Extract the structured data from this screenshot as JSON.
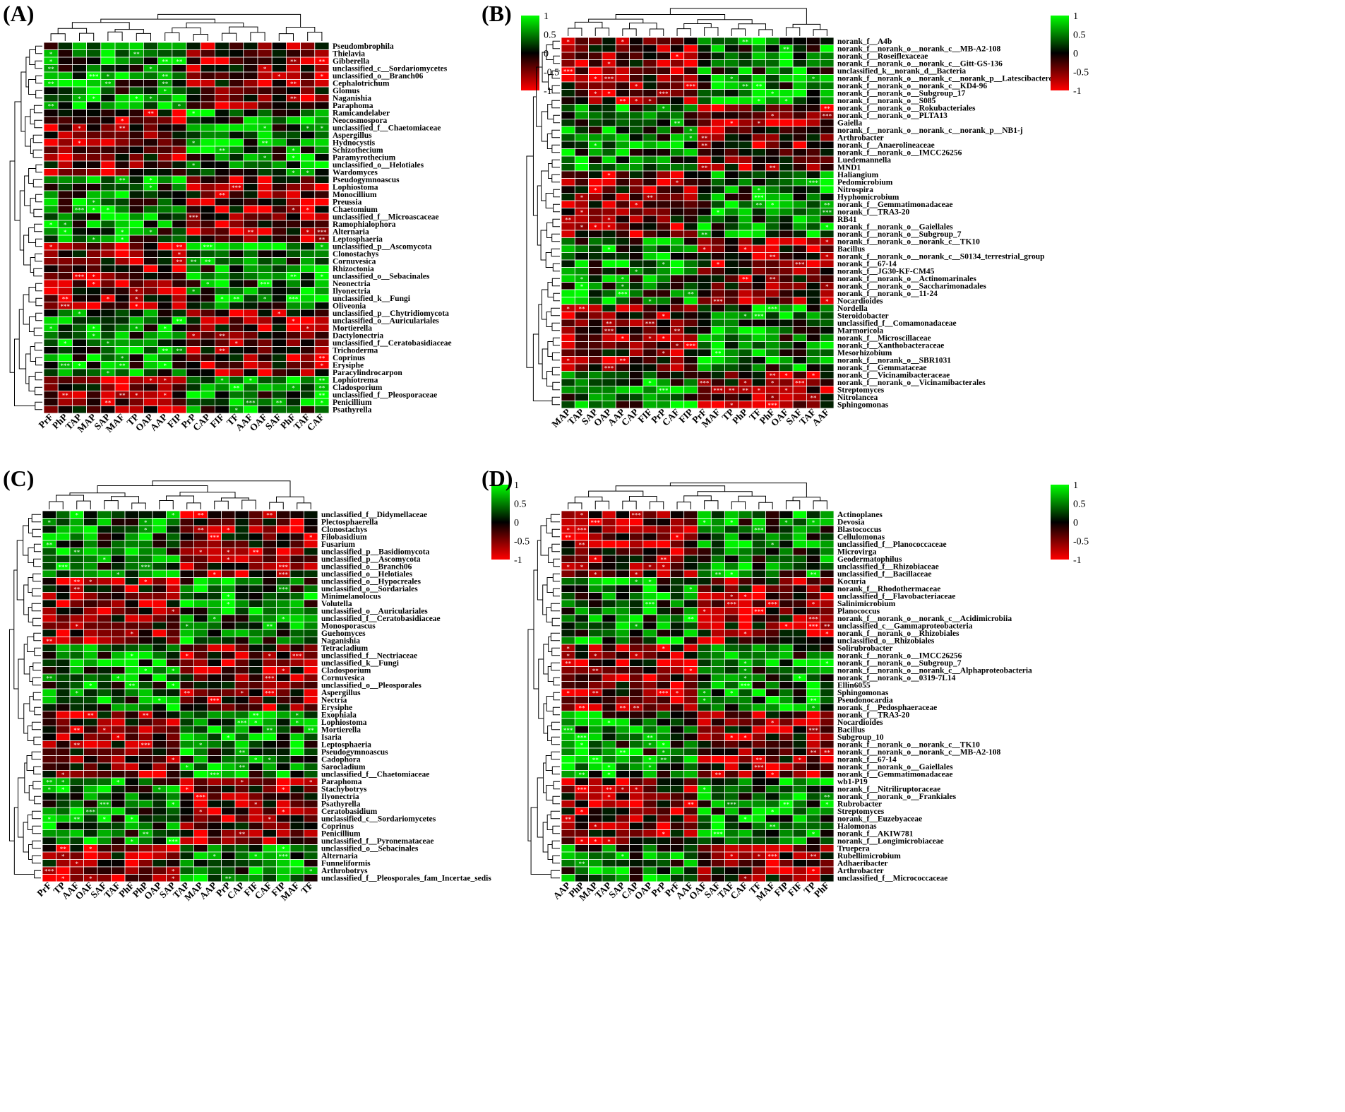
{
  "panels": [
    {
      "label": "(A)",
      "cols": [
        "PrF",
        "PhP",
        "TAP",
        "MAP",
        "SAP",
        "MAF",
        "TP",
        "OAP",
        "AAP",
        "FIP",
        "PrP",
        "CAP",
        "FIF",
        "TF",
        "AAF",
        "OAF",
        "SAF",
        "PhF",
        "TAF",
        "CAF"
      ],
      "rows": [
        "Pseudombrophila",
        "Thielavia",
        "Gibberella",
        "unclassified_c__Sordariomycetes",
        "unclassified_o__Branch06",
        "Cephalotrichum",
        "Glomus",
        "Naganishia",
        "Paraphoma",
        "Ramicandelaber",
        "Neocosmospora",
        "unclassified_f__Chaetomiaceae",
        "Aspergillus",
        "Hydnocystis",
        "Schizothecium",
        "Paramyrothecium",
        "unclassified_o__Helotiales",
        "Wardomyces",
        "Pseudogymnoascus",
        "Lophiostoma",
        "Monocillium",
        "Preussia",
        "Chaetomium",
        "unclassified_f__Microascaceae",
        "Ramophialophora",
        "Alternaria",
        "Leptosphaeria",
        "unclassified_p__Ascomycota",
        "Clonostachys",
        "Cornuvesica",
        "Rhizoctonia",
        "unclassified_o__Sebacinales",
        "Neonectria",
        "Ilyonectria",
        "unclassified_k__Fungi",
        "Oliveonia",
        "unclassified_p__Chytridiomycota",
        "unclassified_o__Auriculariales",
        "Mortierella",
        "Dactylonectria",
        "unclassified_f__Ceratobasidiaceae",
        "Trichoderma",
        "Coprinus",
        "Erysiphe",
        "Paracylindrocarpon",
        "Lophiotrema",
        "Cladosporium",
        "unclassified_f__Pleosporaceae",
        "Penicillium",
        "Psathyrella"
      ]
    },
    {
      "label": "(B)",
      "cols": [
        "MAP",
        "TAP",
        "SAP",
        "OAP",
        "AAP",
        "CAP",
        "FIF",
        "PrP",
        "CAF",
        "FIP",
        "PrF",
        "MAF",
        "TP",
        "PhP",
        "TF",
        "PhF",
        "OAF",
        "SAF",
        "TAF",
        "AAF"
      ],
      "rows": [
        "norank_f__A4b",
        "norank_f__norank_o__norank_c__MB-A2-108",
        "norank_f__Roseiflexaceae",
        "norank_f__norank_o__norank_c__Gitt-GS-136",
        "unclassified_k__norank_d__Bacteria",
        "norank_f__norank_o__norank_c__norank_p__Latescibacterota",
        "norank_f__norank_o__norank_c__KD4-96",
        "norank_f__norank_o__Subgroup_17",
        "norank_f__norank_o__S085",
        "norank_f__norank_o__Rokubacteriales",
        "norank_f__norank_o__PLTA13",
        "Gaiella",
        "norank_f__norank_o__norank_c__norank_p__NB1-j",
        "Arthrobacter",
        "norank_f__Anaerolineaceae",
        "norank_f__norank_o__IMCC26256",
        "Luedemannella",
        "MND1",
        "Haliangium",
        "Pedomicrobium",
        "Nitrospira",
        "Hyphomicrobium",
        "norank_f__Gemmatimonadaceae",
        "norank_f__TRA3-20",
        "RB41",
        "norank_f__norank_o__Gaiellales",
        "norank_f__norank_o__Subgroup_7",
        "norank_f__norank_o__norank_c__TK10",
        "Bacillus",
        "norank_f__norank_o__norank_c__S0134_terrestrial_group",
        "norank_f__67-14",
        "norank_f__JG30-KF-CM45",
        "norank_f__norank_o__Actinomarinales",
        "norank_f__norank_o__Saccharimonadales",
        "norank_f__norank_o__11-24",
        "Nocardioides",
        "Nordella",
        "Steroidobacter",
        "unclassified_f__Comamonadaceae",
        "Marmoricola",
        "norank_f__Microscillaceae",
        "norank_f__Xanthobacteraceae",
        "Mesorhizobium",
        "norank_f__norank_o__SBR1031",
        "norank_f__Gemmataceae",
        "norank_f__Vicinamibacteraceae",
        "norank_f__norank_o__Vicinamibacterales",
        "Streptomyces",
        "Nitrolancea",
        "Sphingomonas"
      ]
    },
    {
      "label": "(C)",
      "cols": [
        "PrF",
        "TP",
        "AAF",
        "OAF",
        "SAF",
        "TAF",
        "PhF",
        "PhP",
        "OAP",
        "SAP",
        "TAP",
        "MAP",
        "AAP",
        "PrP",
        "CAP",
        "FIF",
        "CAF",
        "FIP",
        "MAF",
        "TF"
      ],
      "rows": [
        "unclassified_f__Didymellaceae",
        "Plectosphaerella",
        "Clonostachys",
        "Filobasidium",
        "Fusarium",
        "unclassified_p__Basidiomycota",
        "unclassified_p__Ascomycota",
        "unclassified_o__Branch06",
        "unclassified_o__Helotiales",
        "unclassified_o__Hypocreales",
        "unclassified_o__Sordariales",
        "Minimelanolocus",
        "Volutella",
        "unclassified_o__Auriculariales",
        "unclassified_f__Ceratobasidiaceae",
        "Monosporascus",
        "Guehomyces",
        "Naganishia",
        "Tetracladium",
        "unclassified_f__Nectriaceae",
        "unclassified_k__Fungi",
        "Cladosporium",
        "Cornuvesica",
        "unclassified_o__Pleosporales",
        "Aspergillus",
        "Nectria",
        "Erysiphe",
        "Exophiala",
        "Lophiostoma",
        "Mortierella",
        "Isaria",
        "Leptosphaeria",
        "Pseudogymnoascus",
        "Cadophora",
        "Sarocladium",
        "unclassified_f__Chaetomiaceae",
        "Paraphoma",
        "Stachybotrys",
        "Ilyonectria",
        "Psathyrella",
        "Ceratobasidium",
        "unclassified_c__Sordariomycetes",
        "Coprinus",
        "Penicillium",
        "unclassified_f__Pyronemataceae",
        "unclassified_o__Sebacinales",
        "Alternaria",
        "Funneliformis",
        "Arthrobotrys",
        "unclassified_f__Pleosporales_fam_Incertae_sedis"
      ]
    },
    {
      "label": "(D)",
      "cols": [
        "AAP",
        "PhP",
        "MAP",
        "TAP",
        "SAP",
        "CAP",
        "OAP",
        "PrP",
        "PrF",
        "AAF",
        "OAF",
        "SAF",
        "TAF",
        "CAF",
        "TF",
        "MAF",
        "FIP",
        "FIF",
        "TP",
        "PhF"
      ],
      "rows": [
        "Actinoplanes",
        "Devosia",
        "Blastococcus",
        "Cellulomonas",
        "unclassified_f__Planococcaceae",
        "Microvirga",
        "Geodermatophilus",
        "unclassified_f__Rhizobiaceae",
        "unclassified_f__Bacillaceae",
        "Kocuria",
        "norank_f__Rhodothermaceae",
        "unclassified_f__Flavobacteriaceae",
        "Salinimicrobium",
        "Planococcus",
        "norank_f__norank_o__norank_c__Acidimicrobiia",
        "unclassified_c__Gammaproteobacteria",
        "norank_f__norank_o__Rhizobiales",
        "unclassified_o__Rhizobiales",
        "Solirubrobacter",
        "norank_f__norank_o__IMCC26256",
        "norank_f__norank_o__Subgroup_7",
        "norank_f__norank_o__norank_c__Alphaproteobacteria",
        "norank_f__norank_o__0319-7L14",
        "Ellin6055",
        "Sphingomonas",
        "Pseudonocardia",
        "norank_f__Pedosphaeraceae",
        "norank_f__TRA3-20",
        "Nocardioides",
        "Bacillus",
        "Subgroup_10",
        "norank_f__norank_o__norank_c__TK10",
        "norank_f__norank_o__norank_c__MB-A2-108",
        "norank_f__67-14",
        "norank_f__norank_o__Gaiellales",
        "norank_f__Gemmatimonadaceae",
        "wb1-P19",
        "norank_f__Nitriliruptoraceae",
        "norank_f__norank_o__Frankiales",
        "Rubrobacter",
        "Streptomyces",
        "norank_f__Euzebyaceae",
        "Halomonas",
        "norank_f__AKIW781",
        "norank_f__Longimicrobiaceae",
        "Truepera",
        "Rubellimicrobium",
        "Adhaeribacter",
        "Arthrobacter",
        "unclassified_f__Micrococcaceae"
      ]
    }
  ],
  "legend": {
    "ticks": [
      "1",
      "0.5",
      "0",
      "-0.5",
      "-1"
    ]
  },
  "colors": {
    "positive": "#00ff00",
    "zero": "#000000",
    "negative": "#ff0000",
    "grid": "#ffffff"
  },
  "chart_data": [
    {
      "type": "heatmap",
      "title": "(A)",
      "x_categories_ref": "panels.0.cols",
      "y_categories_ref": "panels.0.rows",
      "value_range": [
        -1,
        1
      ],
      "value_meaning": "correlation coefficient",
      "significance_marks": [
        "*",
        "**",
        "***"
      ]
    },
    {
      "type": "heatmap",
      "title": "(B)",
      "x_categories_ref": "panels.1.cols",
      "y_categories_ref": "panels.1.rows",
      "value_range": [
        -1,
        1
      ],
      "value_meaning": "correlation coefficient",
      "significance_marks": [
        "*",
        "**",
        "***"
      ]
    },
    {
      "type": "heatmap",
      "title": "(C)",
      "x_categories_ref": "panels.2.cols",
      "y_categories_ref": "panels.2.rows",
      "value_range": [
        -1,
        1
      ],
      "value_meaning": "correlation coefficient",
      "significance_marks": [
        "*",
        "**",
        "***"
      ]
    },
    {
      "type": "heatmap",
      "title": "(D)",
      "x_categories_ref": "panels.3.cols",
      "y_categories_ref": "panels.3.rows",
      "value_range": [
        -1,
        1
      ],
      "value_meaning": "correlation coefficient",
      "significance_marks": [
        "*",
        "**",
        "***"
      ]
    }
  ]
}
